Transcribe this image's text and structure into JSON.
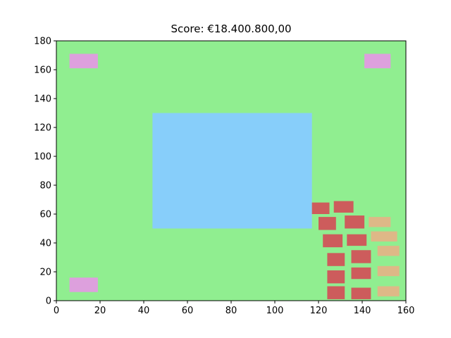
{
  "game": {
    "score_text": "Score: €18.400.800,00"
  },
  "colors": {
    "field": "#90ee90",
    "pond": "#87cefa",
    "corner_marker": "#dda0dd",
    "brick_red": "#cd5c5c",
    "brick_tan": "#deb887"
  },
  "axes": {
    "xlim": [
      0,
      160
    ],
    "ylim": [
      0,
      180
    ],
    "x_ticks": [
      "0",
      "20",
      "40",
      "60",
      "80",
      "100",
      "120",
      "140",
      "160"
    ],
    "y_ticks": [
      "0",
      "20",
      "40",
      "60",
      "80",
      "100",
      "120",
      "140",
      "160",
      "180"
    ]
  },
  "world": {
    "pond": {
      "x": [
        44,
        117
      ],
      "y": [
        50,
        130
      ]
    },
    "corner_markers": [
      {
        "x": [
          6,
          19
        ],
        "y": [
          161,
          171
        ]
      },
      {
        "x": [
          141,
          153
        ],
        "y": [
          161,
          171
        ]
      },
      {
        "x": [
          6,
          19
        ],
        "y": [
          6,
          16
        ]
      }
    ],
    "red_bricks": [
      {
        "x": [
          117,
          125
        ],
        "y": [
          60,
          68
        ]
      },
      {
        "x": [
          127,
          136
        ],
        "y": [
          61,
          69
        ]
      },
      {
        "x": [
          120,
          128
        ],
        "y": [
          49,
          58
        ]
      },
      {
        "x": [
          132,
          141
        ],
        "y": [
          50,
          59
        ]
      },
      {
        "x": [
          122,
          131
        ],
        "y": [
          37,
          46
        ]
      },
      {
        "x": [
          133,
          142
        ],
        "y": [
          38,
          46
        ]
      },
      {
        "x": [
          124,
          132
        ],
        "y": [
          24,
          33
        ]
      },
      {
        "x": [
          135,
          144
        ],
        "y": [
          26,
          35
        ]
      },
      {
        "x": [
          124,
          132
        ],
        "y": [
          12,
          21
        ]
      },
      {
        "x": [
          135,
          144
        ],
        "y": [
          15,
          23
        ]
      },
      {
        "x": [
          124,
          132
        ],
        "y": [
          1,
          10
        ]
      },
      {
        "x": [
          135,
          144
        ],
        "y": [
          1,
          9
        ]
      }
    ],
    "tan_bricks": [
      {
        "x": [
          143,
          153
        ],
        "y": [
          51,
          58
        ]
      },
      {
        "x": [
          144,
          156
        ],
        "y": [
          41,
          48
        ]
      },
      {
        "x": [
          147,
          157
        ],
        "y": [
          31,
          38
        ]
      },
      {
        "x": [
          147,
          157
        ],
        "y": [
          17,
          24
        ]
      },
      {
        "x": [
          147,
          157
        ],
        "y": [
          3,
          10
        ]
      }
    ]
  }
}
